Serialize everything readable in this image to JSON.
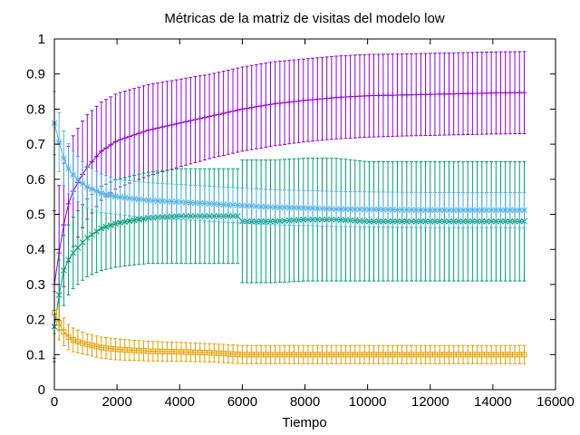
{
  "chart_data": {
    "type": "line",
    "title": "Métricas de la matriz de visitas del modelo low",
    "xlabel": "Tiempo",
    "ylabel": "",
    "xlim": [
      0,
      16000
    ],
    "ylim": [
      0,
      1
    ],
    "xticks": [
      "0",
      "2000",
      "4000",
      "6000",
      "8000",
      "10000",
      "12000",
      "14000",
      "16000"
    ],
    "yticks": [
      "0",
      "0.1",
      "0.2",
      "0.3",
      "0.4",
      "0.5",
      "0.6",
      "0.7",
      "0.8",
      "0.9",
      "1"
    ],
    "grid": false,
    "error_bars": true,
    "series": [
      {
        "color": "#9400d3",
        "marker": "+",
        "x": [
          0,
          250,
          500,
          1000,
          1500,
          2000,
          3000,
          4000,
          5000,
          6000,
          7000,
          8000,
          9000,
          10000,
          11000,
          12000,
          13000,
          14000,
          15000
        ],
        "y": [
          0.3,
          0.45,
          0.55,
          0.63,
          0.68,
          0.71,
          0.74,
          0.76,
          0.78,
          0.8,
          0.815,
          0.825,
          0.833,
          0.838,
          0.84,
          0.842,
          0.844,
          0.846,
          0.847
        ],
        "err": [
          0.21,
          0.18,
          0.16,
          0.15,
          0.14,
          0.135,
          0.13,
          0.125,
          0.12,
          0.12,
          0.12,
          0.118,
          0.118,
          0.118,
          0.117,
          0.117,
          0.117,
          0.117,
          0.117
        ]
      },
      {
        "color": "#009e73",
        "marker": "x",
        "x": [
          0,
          250,
          500,
          1000,
          1500,
          2000,
          3000,
          4000,
          5000,
          5900,
          6000,
          7000,
          8000,
          9000,
          10000,
          11000,
          12000,
          13000,
          14000,
          15000
        ],
        "y": [
          0.18,
          0.33,
          0.38,
          0.43,
          0.46,
          0.475,
          0.49,
          0.495,
          0.495,
          0.495,
          0.48,
          0.48,
          0.485,
          0.485,
          0.48,
          0.48,
          0.48,
          0.48,
          0.48,
          0.48
        ],
        "err": [
          0.1,
          0.1,
          0.1,
          0.11,
          0.12,
          0.125,
          0.13,
          0.135,
          0.135,
          0.135,
          0.175,
          0.175,
          0.175,
          0.175,
          0.17,
          0.17,
          0.17,
          0.17,
          0.17,
          0.17
        ]
      },
      {
        "color": "#56b4e9",
        "marker": "*",
        "x": [
          0,
          250,
          500,
          1000,
          1500,
          2000,
          3000,
          4000,
          5000,
          6000,
          7000,
          8000,
          9000,
          10000,
          11000,
          12000,
          13000,
          14000,
          15000
        ],
        "y": [
          0.76,
          0.67,
          0.62,
          0.58,
          0.56,
          0.55,
          0.54,
          0.535,
          0.53,
          0.525,
          0.52,
          0.518,
          0.515,
          0.514,
          0.513,
          0.512,
          0.512,
          0.512,
          0.512
        ],
        "err": [
          0.09,
          0.08,
          0.07,
          0.06,
          0.055,
          0.05,
          0.05,
          0.05,
          0.05,
          0.05,
          0.05,
          0.05,
          0.05,
          0.05,
          0.05,
          0.05,
          0.05,
          0.05,
          0.05
        ]
      },
      {
        "color": "#e69f00",
        "marker": "square",
        "x": [
          0,
          250,
          500,
          1000,
          1500,
          2000,
          3000,
          4000,
          5000,
          6000,
          7000,
          8000,
          9000,
          10000,
          11000,
          12000,
          13000,
          14000,
          15000
        ],
        "y": [
          0.22,
          0.17,
          0.145,
          0.13,
          0.12,
          0.115,
          0.11,
          0.108,
          0.105,
          0.1,
          0.1,
          0.1,
          0.1,
          0.1,
          0.1,
          0.1,
          0.1,
          0.1,
          0.1
        ],
        "err": [
          0.06,
          0.04,
          0.035,
          0.03,
          0.03,
          0.03,
          0.028,
          0.027,
          0.026,
          0.026,
          0.026,
          0.026,
          0.026,
          0.026,
          0.026,
          0.026,
          0.026,
          0.026,
          0.026
        ]
      }
    ]
  }
}
